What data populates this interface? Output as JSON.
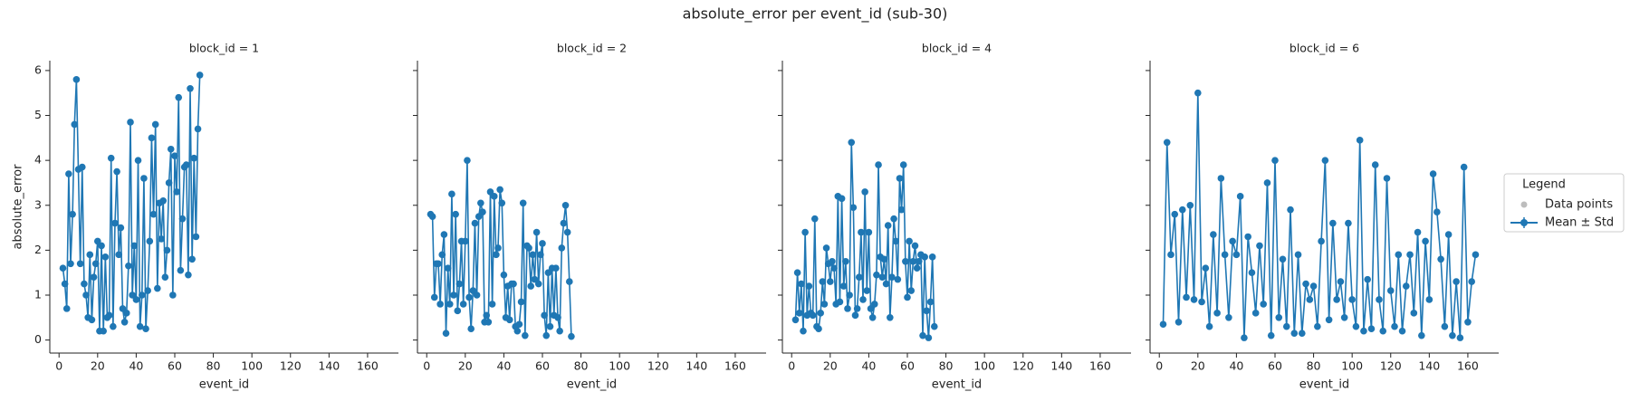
{
  "title": "absolute_error per event_id (sub-30)",
  "legend": {
    "title": "Legend",
    "entries": [
      {
        "name": "Data points",
        "color": "#bdbdbd"
      }
    ]
  },
  "chart_data": [
    {
      "type": "line",
      "title": "block_id = 1",
      "xlabel": "event_id",
      "ylabel": "absolute_error",
      "x": [
        2,
        3,
        4,
        5,
        6,
        7,
        8,
        9,
        10,
        11,
        12,
        13,
        14,
        15,
        16,
        17,
        18,
        19,
        20,
        21,
        22,
        23,
        24,
        25,
        26,
        27,
        28,
        29,
        30,
        31,
        32,
        33,
        34,
        35,
        36,
        37,
        38,
        39,
        40,
        41,
        42,
        43,
        44,
        45,
        46,
        47,
        48,
        49,
        50,
        51,
        52,
        53,
        54,
        55,
        56,
        57,
        58,
        59,
        60,
        61,
        62,
        63,
        64,
        65,
        66,
        67,
        68,
        69,
        70,
        71,
        72,
        73
      ],
      "series": [
        {
          "name": "Mean ± Std",
          "color": "#1f77b4",
          "values": [
            1.6,
            1.25,
            0.7,
            3.7,
            1.7,
            2.8,
            4.8,
            5.8,
            3.8,
            1.7,
            3.85,
            1.25,
            1.0,
            0.5,
            1.9,
            0.45,
            1.4,
            1.7,
            2.2,
            0.2,
            2.1,
            0.2,
            1.85,
            0.5,
            0.55,
            4.05,
            0.3,
            2.6,
            3.75,
            1.9,
            2.5,
            0.7,
            0.4,
            0.6,
            1.65,
            4.85,
            1.0,
            2.1,
            0.9,
            4.0,
            0.3,
            1.0,
            3.6,
            0.25,
            1.1,
            2.2,
            4.5,
            2.8,
            4.8,
            1.15,
            3.05,
            2.25,
            3.1,
            1.4,
            2.0,
            3.5,
            4.25,
            1.0,
            4.1,
            3.3,
            5.4,
            1.55,
            2.7,
            3.85,
            3.9,
            1.45,
            5.6,
            1.8,
            4.05,
            2.3,
            4.7,
            5.9
          ]
        }
      ],
      "xlim": [
        -4.8,
        176
      ],
      "ylim": [
        -0.29,
        6.22
      ],
      "xticks": [
        0,
        20,
        40,
        60,
        80,
        100,
        120,
        140,
        160
      ],
      "yticks": [
        0,
        1,
        2,
        3,
        4,
        5,
        6
      ]
    },
    {
      "type": "line",
      "title": "block_id = 2",
      "xlabel": "event_id",
      "x": [
        2,
        3,
        4,
        5,
        6,
        7,
        8,
        9,
        10,
        11,
        12,
        13,
        14,
        15,
        16,
        17,
        18,
        19,
        20,
        21,
        22,
        23,
        24,
        25,
        26,
        27,
        28,
        29,
        30,
        31,
        32,
        33,
        34,
        35,
        36,
        37,
        38,
        39,
        40,
        41,
        42,
        43,
        44,
        45,
        46,
        47,
        48,
        49,
        50,
        51,
        52,
        53,
        54,
        55,
        56,
        57,
        58,
        59,
        60,
        61,
        62,
        63,
        64,
        65,
        66,
        67,
        68,
        69,
        70,
        71,
        72,
        73,
        74,
        75
      ],
      "series": [
        {
          "name": "Mean ± Std",
          "color": "#1f77b4",
          "values": [
            2.8,
            2.75,
            0.95,
            1.7,
            1.7,
            0.8,
            1.9,
            2.35,
            0.15,
            1.6,
            0.8,
            3.25,
            1.0,
            2.8,
            0.65,
            1.25,
            2.2,
            0.8,
            2.2,
            4.0,
            0.95,
            0.25,
            1.1,
            2.6,
            1.0,
            2.75,
            3.05,
            2.85,
            0.4,
            0.55,
            0.4,
            3.3,
            0.8,
            3.2,
            1.9,
            2.05,
            3.35,
            3.05,
            1.45,
            0.5,
            1.2,
            0.45,
            1.25,
            1.25,
            0.3,
            0.2,
            0.35,
            0.85,
            3.05,
            0.1,
            2.1,
            2.05,
            1.2,
            1.9,
            1.35,
            2.4,
            1.25,
            1.9,
            2.15,
            0.55,
            0.1,
            1.5,
            0.3,
            1.6,
            0.55,
            1.6,
            0.5,
            0.2,
            2.05,
            2.6,
            3.0,
            2.4,
            1.3,
            0.08
          ]
        }
      ],
      "xlim": [
        -4.8,
        176
      ],
      "ylim": [
        -0.29,
        6.22
      ],
      "xticks": [
        0,
        20,
        40,
        60,
        80,
        100,
        120,
        140,
        160
      ],
      "yticks": [
        0,
        1,
        2,
        3,
        4,
        5,
        6
      ]
    },
    {
      "type": "line",
      "title": "block_id = 4",
      "xlabel": "event_id",
      "x": [
        2,
        3,
        4,
        5,
        6,
        7,
        8,
        9,
        10,
        11,
        12,
        13,
        14,
        15,
        16,
        17,
        18,
        19,
        20,
        21,
        22,
        23,
        24,
        25,
        26,
        27,
        28,
        29,
        30,
        31,
        32,
        33,
        34,
        35,
        36,
        37,
        38,
        39,
        40,
        41,
        42,
        43,
        44,
        45,
        46,
        47,
        48,
        49,
        50,
        51,
        52,
        53,
        54,
        55,
        56,
        57,
        58,
        59,
        60,
        61,
        62,
        63,
        64,
        65,
        66,
        67,
        68,
        69,
        70,
        71,
        72,
        73,
        74
      ],
      "series": [
        {
          "name": "Mean ± Std",
          "color": "#1f77b4",
          "values": [
            0.45,
            1.5,
            0.6,
            1.25,
            0.2,
            2.4,
            0.55,
            1.2,
            0.6,
            0.55,
            2.7,
            0.3,
            0.25,
            0.6,
            1.3,
            0.8,
            2.05,
            1.7,
            1.3,
            1.75,
            1.6,
            0.8,
            3.2,
            0.85,
            3.15,
            1.2,
            1.75,
            0.7,
            1.0,
            4.4,
            2.95,
            0.55,
            0.7,
            1.4,
            2.4,
            0.9,
            3.3,
            1.1,
            2.4,
            0.7,
            0.5,
            0.8,
            1.45,
            3.9,
            1.85,
            1.4,
            1.8,
            1.25,
            2.55,
            0.5,
            1.4,
            2.7,
            2.2,
            1.35,
            3.6,
            2.9,
            3.9,
            1.75,
            0.95,
            2.2,
            1.1,
            1.75,
            2.1,
            1.6,
            1.75,
            1.9,
            0.1,
            1.85,
            0.65,
            0.05,
            0.85,
            1.85,
            0.3
          ]
        }
      ],
      "xlim": [
        -4.8,
        176
      ],
      "ylim": [
        -0.29,
        6.22
      ],
      "xticks": [
        0,
        20,
        40,
        60,
        80,
        100,
        120,
        140,
        160
      ],
      "yticks": [
        0,
        1,
        2,
        3,
        4,
        5,
        6
      ]
    },
    {
      "type": "line",
      "title": "block_id = 6",
      "xlabel": "event_id",
      "x": [
        2,
        4,
        6,
        8,
        10,
        12,
        14,
        16,
        18,
        20,
        22,
        24,
        26,
        28,
        30,
        32,
        34,
        36,
        38,
        40,
        42,
        44,
        46,
        48,
        50,
        52,
        54,
        56,
        58,
        60,
        62,
        64,
        66,
        68,
        70,
        72,
        74,
        76,
        78,
        80,
        82,
        84,
        86,
        88,
        90,
        92,
        94,
        96,
        98,
        100,
        102,
        104,
        106,
        108,
        110,
        112,
        114,
        116,
        118,
        120,
        122,
        124,
        126,
        128,
        130,
        132,
        134,
        136,
        138,
        140,
        142,
        144,
        146,
        148,
        150,
        152,
        154,
        156,
        158,
        160,
        162,
        164
      ],
      "series": [
        {
          "name": "Mean ± Std",
          "color": "#1f77b4",
          "values": [
            0.35,
            4.4,
            1.9,
            2.8,
            0.4,
            2.9,
            0.95,
            3.0,
            0.9,
            5.5,
            0.85,
            1.6,
            0.3,
            2.35,
            0.6,
            3.6,
            1.9,
            0.5,
            2.2,
            1.9,
            3.2,
            0.05,
            2.3,
            1.5,
            0.6,
            2.1,
            0.8,
            3.5,
            0.1,
            4.0,
            0.5,
            1.8,
            0.3,
            2.9,
            0.15,
            1.9,
            0.15,
            1.25,
            0.9,
            1.2,
            0.3,
            2.2,
            4.0,
            0.45,
            2.6,
            0.9,
            1.3,
            0.5,
            2.6,
            0.9,
            0.3,
            4.45,
            0.2,
            1.35,
            0.25,
            3.9,
            0.9,
            0.2,
            3.6,
            1.1,
            0.3,
            1.9,
            0.2,
            1.2,
            1.9,
            0.6,
            2.4,
            0.1,
            2.2,
            0.9,
            3.7,
            2.85,
            1.8,
            0.3,
            2.35,
            0.1,
            1.3,
            0.05,
            3.85,
            0.4,
            1.3,
            1.9
          ]
        }
      ],
      "xlim": [
        -4.8,
        176
      ],
      "ylim": [
        -0.29,
        6.22
      ],
      "xticks": [
        0,
        20,
        40,
        60,
        80,
        100,
        120,
        140,
        160
      ],
      "yticks": [
        0,
        1,
        2,
        3,
        4,
        5,
        6
      ]
    }
  ]
}
